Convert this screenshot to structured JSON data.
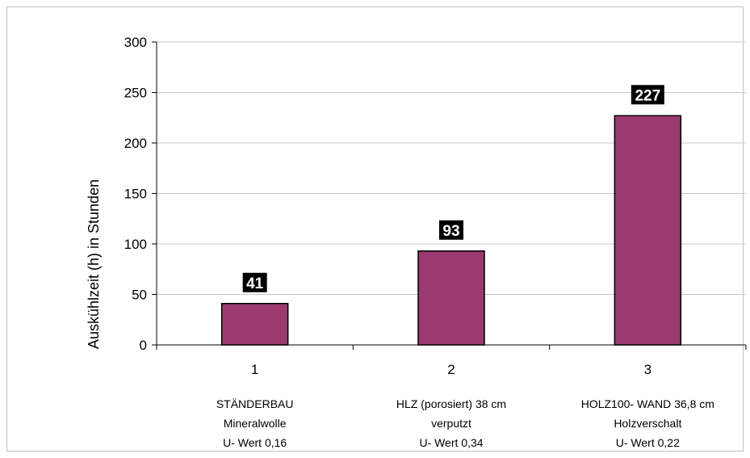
{
  "chart_data": {
    "type": "bar",
    "categories": [
      "1",
      "2",
      "3"
    ],
    "category_descriptions": [
      [
        "STÄNDERBAU",
        "Mineralwolle",
        "U- Wert 0,16"
      ],
      [
        "HLZ (porosiert) 38 cm",
        "verputzt",
        "U- Wert 0,34"
      ],
      [
        "HOLZ100- WAND 36,8 cm",
        "Holzverschalt",
        "U- Wert 0,22"
      ]
    ],
    "values": [
      41,
      93,
      227
    ],
    "data_labels": [
      "41",
      "93",
      "227"
    ],
    "ylabel": "Auskühlzeit (h) in Stunden",
    "xlabel": "",
    "ylim": [
      0,
      300
    ],
    "yticks": [
      0,
      50,
      100,
      150,
      200,
      250,
      300
    ],
    "grid": true,
    "legend": "none",
    "colors": {
      "bar": "#9b3a6e",
      "bar_edge": "#000000",
      "label_bg": "#000000",
      "grid": "#c8c8c8"
    }
  }
}
